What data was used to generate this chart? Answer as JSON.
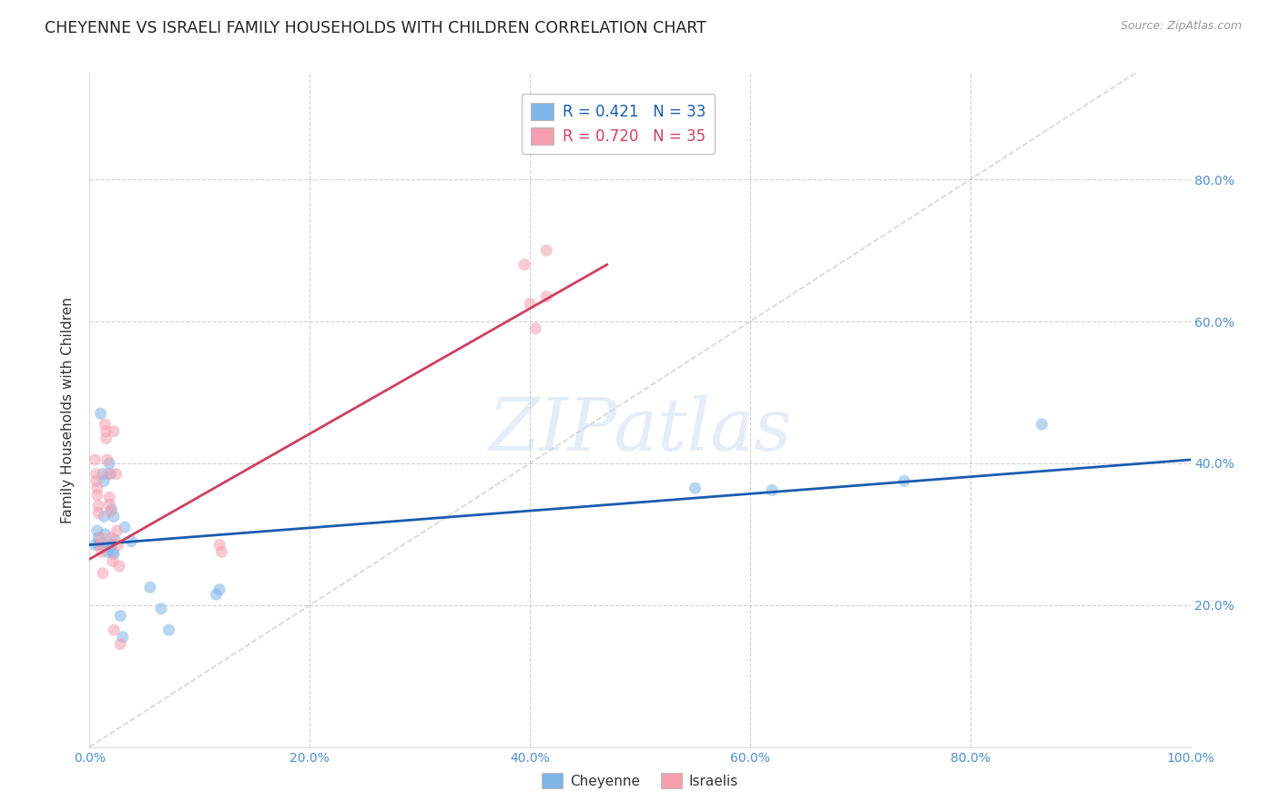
{
  "title": "CHEYENNE VS ISRAELI FAMILY HOUSEHOLDS WITH CHILDREN CORRELATION CHART",
  "source": "Source: ZipAtlas.com",
  "ylabel": "Family Households with Children",
  "watermark": "ZIPatlas",
  "xlim": [
    0,
    1.0
  ],
  "ylim": [
    0.0,
    0.95
  ],
  "xticks": [
    0.0,
    0.2,
    0.4,
    0.6,
    0.8,
    1.0
  ],
  "yticks": [
    0.2,
    0.4,
    0.6,
    0.8
  ],
  "xtick_labels": [
    "0.0%",
    "20.0%",
    "40.0%",
    "60.0%",
    "80.0%",
    "100.0%"
  ],
  "ytick_labels_right": [
    "20.0%",
    "40.0%",
    "60.0%",
    "80.0%"
  ],
  "cheyenne_color": "#7EB5E8",
  "israeli_color": "#F4A0B0",
  "regression_cheyenne_color": "#1A5CB0",
  "regression_israeli_color": "#D04060",
  "diagonal_color": "#CCCCCC",
  "cheyenne_R": 0.421,
  "cheyenne_N": 33,
  "israeli_R": 0.72,
  "israeli_N": 35,
  "cheyenne_points": [
    [
      0.005,
      0.285
    ],
    [
      0.007,
      0.305
    ],
    [
      0.008,
      0.295
    ],
    [
      0.008,
      0.285
    ],
    [
      0.01,
      0.47
    ],
    [
      0.012,
      0.385
    ],
    [
      0.013,
      0.375
    ],
    [
      0.013,
      0.325
    ],
    [
      0.014,
      0.3
    ],
    [
      0.015,
      0.285
    ],
    [
      0.015,
      0.282
    ],
    [
      0.016,
      0.275
    ],
    [
      0.018,
      0.4
    ],
    [
      0.019,
      0.385
    ],
    [
      0.02,
      0.335
    ],
    [
      0.02,
      0.285
    ],
    [
      0.021,
      0.275
    ],
    [
      0.022,
      0.272
    ],
    [
      0.022,
      0.325
    ],
    [
      0.023,
      0.292
    ],
    [
      0.028,
      0.185
    ],
    [
      0.03,
      0.155
    ],
    [
      0.032,
      0.31
    ],
    [
      0.038,
      0.29
    ],
    [
      0.055,
      0.225
    ],
    [
      0.065,
      0.195
    ],
    [
      0.072,
      0.165
    ],
    [
      0.115,
      0.215
    ],
    [
      0.118,
      0.222
    ],
    [
      0.55,
      0.365
    ],
    [
      0.62,
      0.362
    ],
    [
      0.74,
      0.375
    ],
    [
      0.865,
      0.455
    ]
  ],
  "israeli_points": [
    [
      0.005,
      0.405
    ],
    [
      0.006,
      0.385
    ],
    [
      0.006,
      0.375
    ],
    [
      0.007,
      0.365
    ],
    [
      0.007,
      0.355
    ],
    [
      0.008,
      0.34
    ],
    [
      0.008,
      0.33
    ],
    [
      0.01,
      0.295
    ],
    [
      0.01,
      0.285
    ],
    [
      0.011,
      0.275
    ],
    [
      0.012,
      0.245
    ],
    [
      0.014,
      0.455
    ],
    [
      0.015,
      0.445
    ],
    [
      0.015,
      0.435
    ],
    [
      0.016,
      0.405
    ],
    [
      0.017,
      0.385
    ],
    [
      0.018,
      0.352
    ],
    [
      0.018,
      0.342
    ],
    [
      0.019,
      0.332
    ],
    [
      0.02,
      0.295
    ],
    [
      0.021,
      0.262
    ],
    [
      0.022,
      0.165
    ],
    [
      0.022,
      0.445
    ],
    [
      0.024,
      0.385
    ],
    [
      0.025,
      0.305
    ],
    [
      0.026,
      0.285
    ],
    [
      0.027,
      0.255
    ],
    [
      0.028,
      0.145
    ],
    [
      0.118,
      0.285
    ],
    [
      0.12,
      0.275
    ],
    [
      0.395,
      0.68
    ],
    [
      0.4,
      0.625
    ],
    [
      0.405,
      0.59
    ],
    [
      0.415,
      0.635
    ],
    [
      0.415,
      0.7
    ]
  ],
  "cheyenne_trend_x": [
    0.0,
    1.0
  ],
  "cheyenne_trend_y": [
    0.285,
    0.405
  ],
  "israeli_trend_x": [
    0.0,
    0.47
  ],
  "israeli_trend_y": [
    0.265,
    0.68
  ],
  "background_color": "#FFFFFF",
  "grid_color": "#CCCCCC",
  "title_fontsize": 12.5,
  "axis_label_fontsize": 11,
  "tick_fontsize": 10,
  "legend_fontsize": 12,
  "scatter_alpha": 0.55,
  "scatter_size": 90
}
